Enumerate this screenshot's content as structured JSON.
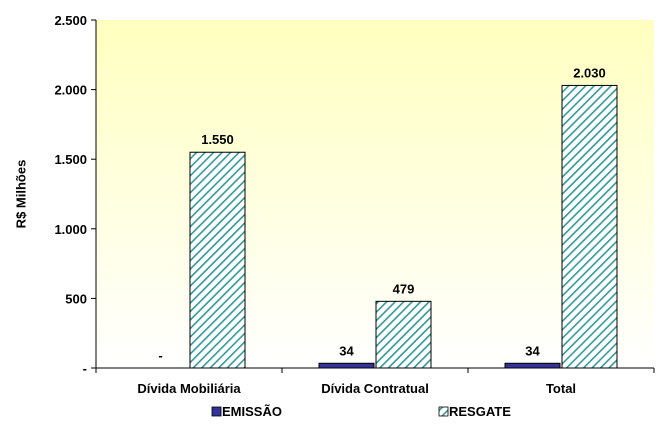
{
  "chart_data": {
    "type": "bar",
    "ylabel": "R$ Milhões",
    "ylim": [
      0,
      2500
    ],
    "yticks": [
      0,
      500,
      1000,
      1500,
      2000,
      2500
    ],
    "ytick_labels": [
      "-",
      "500",
      "1.000",
      "1.500",
      "2.000",
      "2.500"
    ],
    "categories": [
      "Dívida Mobiliária",
      "Dívida Contratual",
      "Total"
    ],
    "series": [
      {
        "name": "EMISSÃO",
        "values": [
          0,
          34,
          34
        ],
        "labels": [
          "-",
          "34",
          "34"
        ],
        "color": "#333399"
      },
      {
        "name": "RESGATE",
        "values": [
          1550,
          479,
          2030
        ],
        "labels": [
          "1.550",
          "479",
          "2.030"
        ],
        "color": "#339999",
        "pattern": "diagonal-hatch"
      }
    ],
    "legend_position": "bottom",
    "grid": false,
    "background_gradient": [
      "#ffffcc",
      "#ffffff"
    ]
  }
}
